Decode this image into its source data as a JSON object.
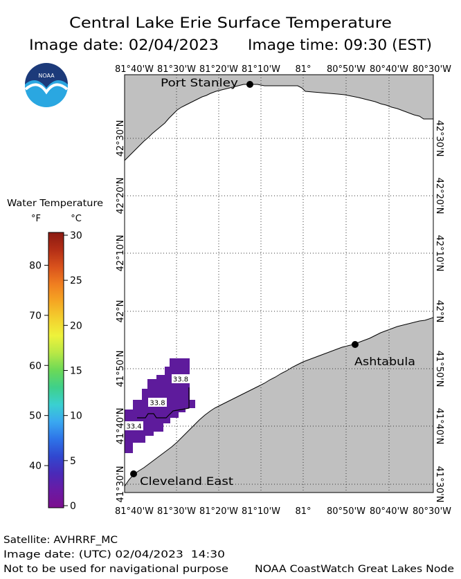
{
  "header": {
    "title": "Central Lake Erie Surface Temperature",
    "image_date": "Image date: 02/04/2023",
    "image_time": "Image time: 09:30 (EST)",
    "logo_text": "NOAA"
  },
  "legend": {
    "title": "Water Temperature",
    "unit_f": "°F",
    "unit_c": "°C",
    "ticks_f": [
      80,
      70,
      60,
      50,
      40
    ],
    "ticks_c": [
      30,
      25,
      20,
      15,
      10,
      5,
      0
    ],
    "colormap": [
      "#8b1a12",
      "#b32e16",
      "#d9521c",
      "#f07e20",
      "#f5a623",
      "#f3d02e",
      "#eef23b",
      "#b8e846",
      "#6cd957",
      "#3fd08a",
      "#3ad0d0",
      "#3aa8f0",
      "#2e74e8",
      "#3048d0",
      "#4a2ab8",
      "#6a1aa4",
      "#7c0f8e"
    ]
  },
  "map": {
    "lon_labels": [
      "81°40'W",
      "81°30'W",
      "81°20'W",
      "81°10'W",
      "81°",
      "80°50'W",
      "80°40'W",
      "80°30'W"
    ],
    "lat_labels": [
      "42°30'N",
      "42°20'N",
      "42°10'N",
      "42°N",
      "41°50'N",
      "41°40'N",
      "41°30'N"
    ],
    "cities": [
      "Port Stanley",
      "Ashtabula",
      "Cleveland East"
    ],
    "contour_labels": [
      "33.8",
      "33.8",
      "33.4"
    ]
  },
  "colors": {
    "land": "#c0c0c0",
    "water": "#ffffff",
    "sst_pixels": "#5e1b9c",
    "city_marker": "#000000",
    "credit": "#3b74d6",
    "logo_dark": "#1c3a7a",
    "logo_light": "#2aa7e1"
  },
  "footer": {
    "satellite": "Satellite: AVHRRF_MC",
    "utc_date": "Image date: (UTC) 02/04/2023  14:30",
    "disclaimer": "Not to be used for navigational purpose",
    "credit": "NOAA CoastWatch Great Lakes Node"
  }
}
